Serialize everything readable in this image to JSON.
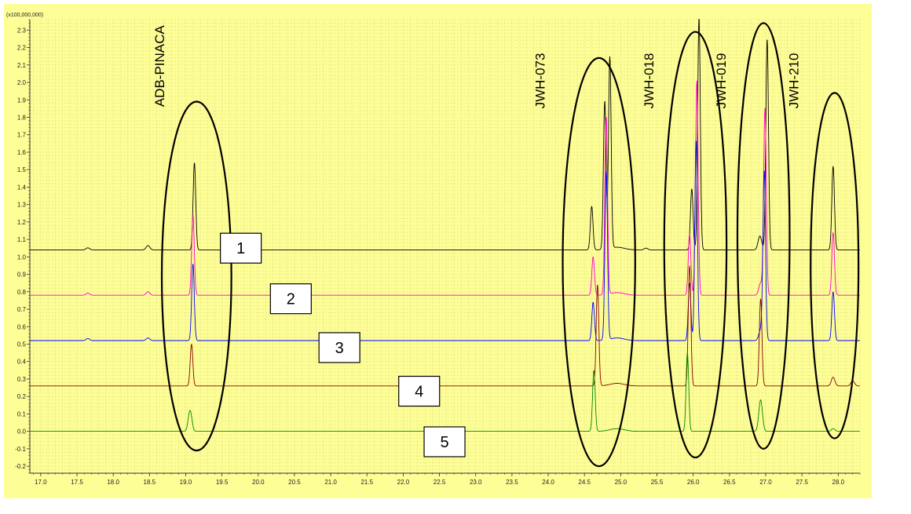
{
  "chart_data": {
    "type": "line",
    "axis_multiplier": "(x100,000,000)",
    "xlim": [
      16.85,
      28.3
    ],
    "ylim": [
      -0.24,
      2.36
    ],
    "x_ticks": [
      "17.0",
      "17.5",
      "18.0",
      "18.5",
      "19.0",
      "19.5",
      "20.0",
      "20.5",
      "21.0",
      "21.5",
      "22.0",
      "22.5",
      "23.0",
      "23.5",
      "24.0",
      "24.5",
      "25.0",
      "25.5",
      "26.0",
      "26.5",
      "27.0",
      "27.5",
      "28.0"
    ],
    "y_ticks": [
      "-0.2",
      "-0.1",
      "0.0",
      "0.1",
      "0.2",
      "0.3",
      "0.4",
      "0.5",
      "0.6",
      "0.7",
      "0.8",
      "0.9",
      "1.0",
      "1.1",
      "1.2",
      "1.3",
      "1.4",
      "1.5",
      "1.6",
      "1.7",
      "1.8",
      "1.9",
      "2.0",
      "2.1",
      "2.2",
      "2.3"
    ],
    "grid": true,
    "colors": {
      "background": "#fefe96",
      "grid": "#dede8a",
      "s1": "#000000",
      "s2": "#ff00cc",
      "s3": "#0000ff",
      "s4": "#8b0000",
      "s5": "#008800"
    },
    "series": [
      {
        "label": "1",
        "color": "#000000",
        "baseline": 1.04,
        "peaks": [
          [
            17.65,
            0.012
          ],
          [
            18.48,
            0.025
          ],
          [
            19.12,
            0.5
          ],
          [
            24.6,
            0.25
          ],
          [
            24.78,
            0.85
          ],
          [
            24.85,
            1.1
          ],
          [
            25.35,
            0.01
          ],
          [
            25.98,
            0.35
          ],
          [
            26.08,
            1.33
          ],
          [
            26.92,
            0.08
          ],
          [
            27.02,
            1.21
          ],
          [
            27.93,
            0.48
          ]
        ]
      },
      {
        "label": "2",
        "color": "#ff00cc",
        "baseline": 0.78,
        "peaks": [
          [
            17.65,
            0.012
          ],
          [
            18.48,
            0.02
          ],
          [
            19.1,
            0.46
          ],
          [
            24.62,
            0.22
          ],
          [
            24.8,
            1.02
          ],
          [
            25.95,
            0.35
          ],
          [
            26.05,
            1.23
          ],
          [
            26.93,
            0.07
          ],
          [
            26.99,
            1.07
          ],
          [
            27.93,
            0.36
          ]
        ]
      },
      {
        "label": "3",
        "color": "#0000ff",
        "baseline": 0.52,
        "peaks": [
          [
            17.65,
            0.012
          ],
          [
            18.48,
            0.015
          ],
          [
            19.1,
            0.44
          ],
          [
            24.62,
            0.22
          ],
          [
            24.8,
            0.97
          ],
          [
            25.95,
            0.33
          ],
          [
            26.04,
            1.15
          ],
          [
            26.93,
            0.06
          ],
          [
            26.98,
            0.97
          ],
          [
            27.93,
            0.28
          ]
        ]
      },
      {
        "label": "4",
        "color": "#8b0000",
        "baseline": 0.26,
        "peaks": [
          [
            19.08,
            0.24
          ],
          [
            24.68,
            0.58
          ],
          [
            25.95,
            0.69
          ],
          [
            26.93,
            0.5
          ],
          [
            27.93,
            0.05
          ],
          [
            28.2,
            0.03
          ]
        ]
      },
      {
        "label": "5",
        "color": "#008800",
        "baseline": 0.0,
        "peaks": [
          [
            19.06,
            0.12
          ],
          [
            24.63,
            0.35
          ],
          [
            25.92,
            0.45
          ],
          [
            26.93,
            0.18
          ],
          [
            27.93,
            0.015
          ]
        ]
      }
    ],
    "annotations": [
      {
        "text": "ADB-PINACA",
        "x": 18.7,
        "y": 1.86
      },
      {
        "text": "JWH-073",
        "x": 23.95,
        "y": 1.85
      },
      {
        "text": "JWH-018",
        "x": 25.45,
        "y": 1.85
      },
      {
        "text": "JWH-019",
        "x": 26.45,
        "y": 1.85
      },
      {
        "text": "JWH-210",
        "x": 27.45,
        "y": 1.85
      }
    ],
    "ellipses": [
      {
        "cx": 19.15,
        "cy": 0.89,
        "rx": 0.48,
        "ry": 1.0
      },
      {
        "cx": 24.7,
        "cy": 0.97,
        "rx": 0.5,
        "ry": 1.17
      },
      {
        "cx": 26.03,
        "cy": 1.07,
        "rx": 0.43,
        "ry": 1.22
      },
      {
        "cx": 26.97,
        "cy": 1.12,
        "rx": 0.36,
        "ry": 1.22
      },
      {
        "cx": 27.95,
        "cy": 0.95,
        "rx": 0.33,
        "ry": 0.99
      }
    ],
    "boxes": [
      {
        "text": "1",
        "x": 19.76,
        "y": 1.05
      },
      {
        "text": "2",
        "x": 20.45,
        "y": 0.76
      },
      {
        "text": "3",
        "x": 21.12,
        "y": 0.48
      },
      {
        "text": "4",
        "x": 22.22,
        "y": 0.23
      },
      {
        "text": "5",
        "x": 22.57,
        "y": -0.06
      }
    ]
  }
}
